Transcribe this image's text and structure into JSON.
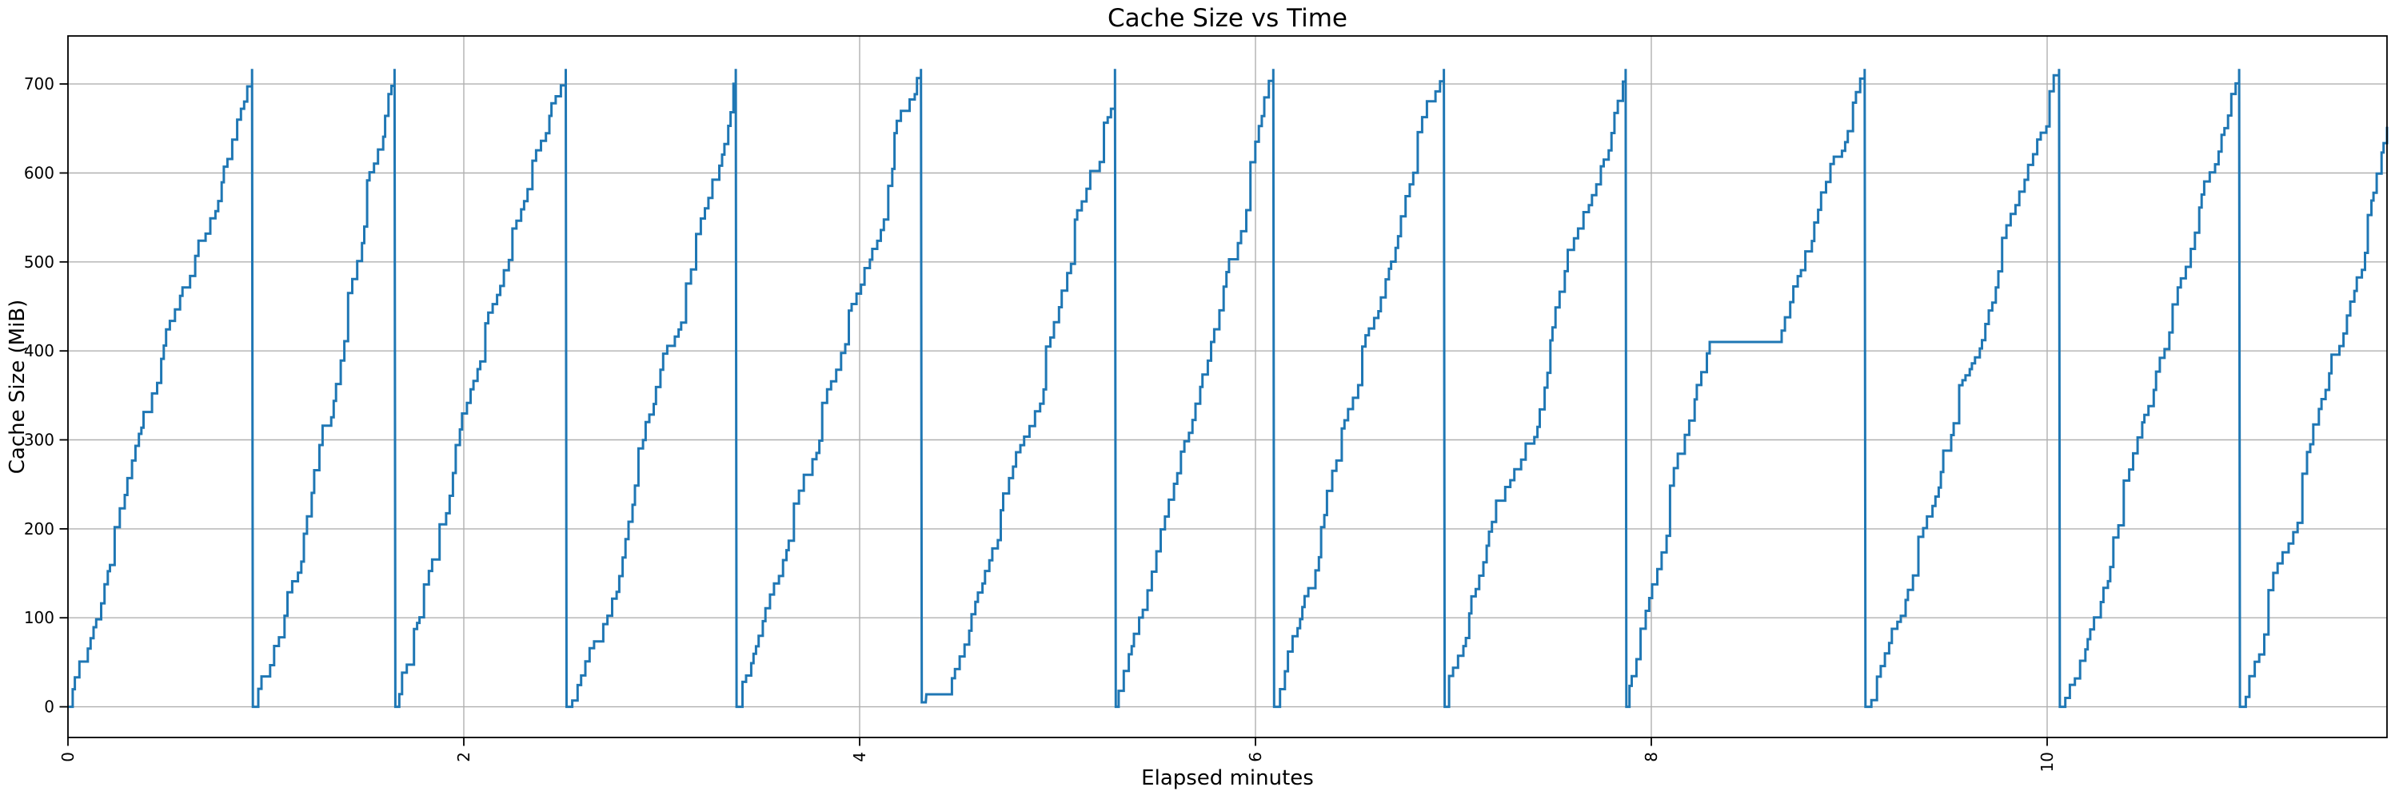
{
  "figure": {
    "title": "Cache Size vs Time",
    "x_axis_label": "Elapsed minutes",
    "y_axis_label": "Cache Size (MiB)"
  },
  "colors": {
    "line": "#1f77b4",
    "grid": "#b0b0b0",
    "spine": "#000000",
    "tick": "#000000",
    "background": "#ffffff",
    "text": "#000000"
  },
  "chart_data": {
    "type": "line",
    "title": "Cache Size vs Time",
    "xlabel": "Elapsed minutes",
    "ylabel": "Cache Size (MiB)",
    "x_ticks": [
      0,
      2,
      4,
      6,
      8,
      10
    ],
    "x_tick_labels": [
      "0",
      "2",
      "4",
      "6",
      "8",
      "10"
    ],
    "x_tick_rotation_deg": 90,
    "y_ticks": [
      0,
      100,
      200,
      300,
      400,
      500,
      600,
      700
    ],
    "y_tick_labels": [
      "0",
      "100",
      "200",
      "300",
      "400",
      "500",
      "600",
      "700"
    ],
    "xlim": [
      0,
      11.717
    ],
    "ylim": [
      -34.5,
      754
    ],
    "grid": true,
    "legend": null,
    "peak_mib": 717,
    "min_after_drop_mib": 0,
    "pattern": "repeating sawtooth: cache fills in ~10-25 MiB staircase steps up to ~717 MiB, then is evicted almost instantly back to ~0",
    "teeth_peak_times_min": [
      0.93,
      1.65,
      2.52,
      3.37,
      4.31,
      5.29,
      6.09,
      6.95,
      7.87,
      9.08,
      10.06,
      10.97
    ],
    "anomalies": [
      {
        "time_range_min": [
          4.31,
          4.46
        ],
        "description": "after eviction the cache briefly plateaus at ~14 MiB before refilling"
      },
      {
        "time_range_min": [
          8.3,
          8.65
        ],
        "description": "fill pauses mid-climb at a ~410 MiB plateau before resuming to the peak"
      }
    ],
    "segments": [
      [
        "stair",
        0.0,
        0,
        0.93,
        717
      ],
      [
        "drop",
        0.93,
        717,
        0.934,
        0
      ],
      [
        "stair",
        0.938,
        0,
        1.65,
        717
      ],
      [
        "drop",
        1.65,
        717,
        1.654,
        0
      ],
      [
        "stair",
        1.658,
        0,
        2.515,
        717
      ],
      [
        "drop",
        2.515,
        717,
        2.519,
        0
      ],
      [
        "stair",
        2.523,
        0,
        3.374,
        717
      ],
      [
        "drop",
        3.374,
        717,
        3.378,
        0
      ],
      [
        "stair",
        3.382,
        0,
        4.31,
        717
      ],
      [
        "drop",
        4.31,
        717,
        4.314,
        5
      ],
      [
        "flat",
        4.314,
        5,
        4.334,
        5
      ],
      [
        "line",
        4.334,
        5,
        4.337,
        14
      ],
      [
        "flat",
        4.337,
        14,
        4.455,
        14
      ],
      [
        "stair",
        4.455,
        14,
        5.29,
        717
      ],
      [
        "drop",
        5.29,
        717,
        5.294,
        0
      ],
      [
        "stair",
        5.298,
        0,
        6.09,
        717
      ],
      [
        "drop",
        6.09,
        717,
        6.094,
        0
      ],
      [
        "stair",
        6.098,
        0,
        6.952,
        717
      ],
      [
        "drop",
        6.952,
        717,
        6.956,
        0
      ],
      [
        "stair",
        6.96,
        0,
        7.87,
        717
      ],
      [
        "drop",
        7.87,
        717,
        7.874,
        0
      ],
      [
        "stair",
        7.878,
        0,
        8.295,
        410
      ],
      [
        "flat",
        8.295,
        410,
        8.645,
        410
      ],
      [
        "stair",
        8.645,
        410,
        9.078,
        717
      ],
      [
        "drop",
        9.078,
        717,
        9.082,
        0
      ],
      [
        "stair",
        9.086,
        0,
        10.06,
        717
      ],
      [
        "drop",
        10.06,
        717,
        10.064,
        0
      ],
      [
        "stair",
        10.068,
        0,
        10.97,
        717
      ],
      [
        "drop",
        10.97,
        717,
        10.974,
        0
      ],
      [
        "stair",
        10.978,
        0,
        11.717,
        652
      ]
    ]
  }
}
